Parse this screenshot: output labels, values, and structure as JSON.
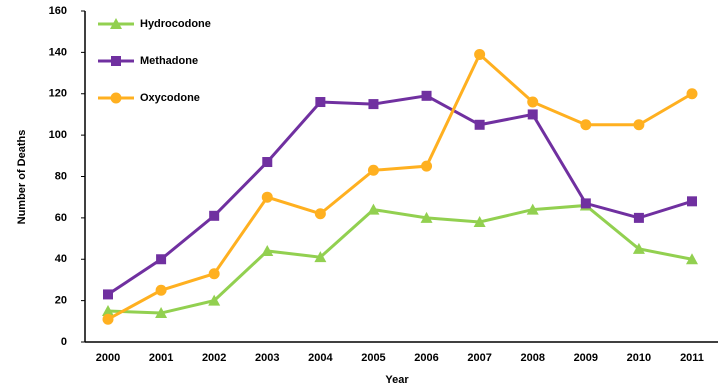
{
  "chart_data": {
    "type": "line",
    "categories": [
      "2000",
      "2001",
      "2002",
      "2003",
      "2004",
      "2005",
      "2006",
      "2007",
      "2008",
      "2009",
      "2010",
      "2011"
    ],
    "series": [
      {
        "name": "Hydrocodone",
        "color": "#92d050",
        "marker": "triangle",
        "values": [
          15,
          14,
          20,
          44,
          41,
          64,
          60,
          58,
          64,
          66,
          45,
          40
        ]
      },
      {
        "name": "Methadone",
        "color": "#7030a0",
        "marker": "square",
        "values": [
          23,
          40,
          61,
          87,
          116,
          115,
          119,
          105,
          110,
          67,
          60,
          68
        ]
      },
      {
        "name": "Oxycodone",
        "color": "#ffb020",
        "marker": "circle",
        "values": [
          11,
          25,
          33,
          70,
          62,
          83,
          85,
          139,
          116,
          105,
          105,
          120
        ]
      }
    ],
    "xlabel": "Year",
    "ylabel": "Number of Deaths",
    "ylim": [
      0,
      160
    ],
    "yticks": [
      0,
      20,
      40,
      60,
      80,
      100,
      120,
      140,
      160
    ],
    "grid": false,
    "legend": "top-left"
  }
}
